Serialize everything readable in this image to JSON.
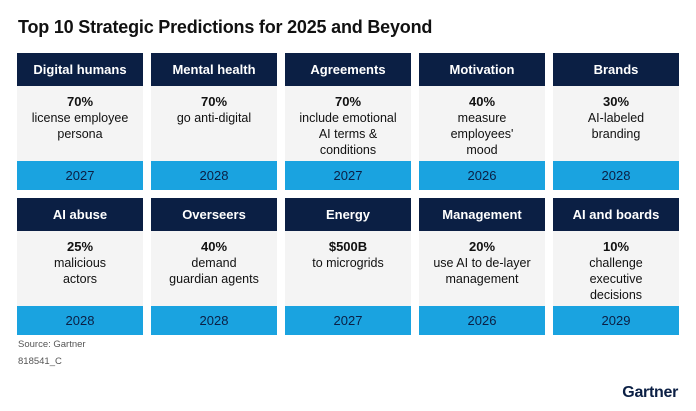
{
  "title": "Top 10 Strategic Predictions for 2025 and Beyond",
  "cards": [
    {
      "head": "Digital humans",
      "pct": "70%",
      "desc": "license employee\npersona",
      "year": "2027"
    },
    {
      "head": "Mental health",
      "pct": "70%",
      "desc": "go anti-digital",
      "year": "2028"
    },
    {
      "head": "Agreements",
      "pct": "70%",
      "desc": "include emotional\nAI terms &\nconditions",
      "year": "2027"
    },
    {
      "head": "Motivation",
      "pct": "40%",
      "desc": "measure\nemployees'\nmood",
      "year": "2026"
    },
    {
      "head": "Brands",
      "pct": "30%",
      "desc": "AI-labeled\nbranding",
      "year": "2028"
    },
    {
      "head": "AI abuse",
      "pct": "25%",
      "desc": "malicious\nactors",
      "year": "2028"
    },
    {
      "head": "Overseers",
      "pct": "40%",
      "desc": "demand\nguardian agents",
      "year": "2028"
    },
    {
      "head": "Energy",
      "pct": "$500B",
      "desc": "to microgrids",
      "year": "2027"
    },
    {
      "head": "Management",
      "pct": "20%",
      "desc": "use AI to de-layer\nmanagement",
      "year": "2026"
    },
    {
      "head": "AI and boards",
      "pct": "10%",
      "desc": "challenge\nexecutive\ndecisions",
      "year": "2029"
    }
  ],
  "source": "Source: Gartner",
  "code": "818541_C",
  "logo": "Gartner",
  "colors": {
    "header": "#0b1f44",
    "year_band": "#1aa3e0",
    "card_bg": "#f4f4f4"
  }
}
